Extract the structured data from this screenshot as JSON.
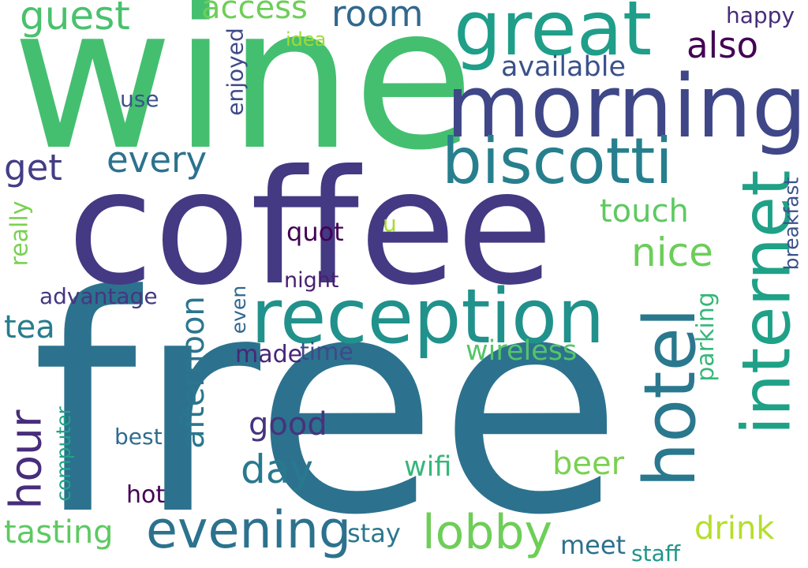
{
  "words": [
    {
      "text": "wine",
      "color": "#44bf70"
    },
    {
      "text": "free",
      "color": "#2c728e"
    },
    {
      "text": "coffee",
      "color": "#443983"
    },
    {
      "text": "morning",
      "color": "#3f4788"
    },
    {
      "text": "great",
      "color": "#1f9e89"
    },
    {
      "text": "reception",
      "color": "#21918c"
    },
    {
      "text": "biscotti",
      "color": "#277f8e"
    },
    {
      "text": "hotel",
      "color": "#2a788e"
    },
    {
      "text": "internet",
      "color": "#1fa187"
    },
    {
      "text": "evening",
      "color": "#2c728e"
    },
    {
      "text": "lobby",
      "color": "#6ece58"
    },
    {
      "text": "afternoon",
      "color": "#2a768e"
    },
    {
      "text": "hour",
      "color": "#472d7b"
    },
    {
      "text": "guest",
      "color": "#4ac16d"
    },
    {
      "text": "room",
      "color": "#31688e"
    },
    {
      "text": "access",
      "color": "#6ece58"
    },
    {
      "text": "also",
      "color": "#440154"
    },
    {
      "text": "available",
      "color": "#3b518b"
    },
    {
      "text": "every",
      "color": "#2c728e"
    },
    {
      "text": "get",
      "color": "#433e85"
    },
    {
      "text": "nice",
      "color": "#6ccd5a"
    },
    {
      "text": "touch",
      "color": "#5ec962"
    },
    {
      "text": "day",
      "color": "#29798e"
    },
    {
      "text": "good",
      "color": "#46337e"
    },
    {
      "text": "tasting",
      "color": "#5ec962"
    },
    {
      "text": "drink",
      "color": "#b5de2b"
    },
    {
      "text": "beer",
      "color": "#7ad151"
    },
    {
      "text": "wireless",
      "color": "#54c568"
    },
    {
      "text": "parking",
      "color": "#35b779"
    },
    {
      "text": "breakfast",
      "color": "#3b528b"
    },
    {
      "text": "tea",
      "color": "#287c8e"
    },
    {
      "text": "advantage",
      "color": "#453781"
    },
    {
      "text": "really",
      "color": "#7ad151"
    },
    {
      "text": "enjoyed",
      "color": "#3e4a89"
    },
    {
      "text": "use",
      "color": "#3b528b"
    },
    {
      "text": "idea",
      "color": "#a0da39"
    },
    {
      "text": "happy",
      "color": "#472c7a"
    },
    {
      "text": "quot",
      "color": "#440154"
    },
    {
      "text": "u",
      "color": "#a5db36"
    },
    {
      "text": "night",
      "color": "#481f70"
    },
    {
      "text": "even",
      "color": "#31688e"
    },
    {
      "text": "made",
      "color": "#482677"
    },
    {
      "text": "time",
      "color": "#3e4a89"
    },
    {
      "text": "wifi",
      "color": "#35b779"
    },
    {
      "text": "best",
      "color": "#2f6c8e"
    },
    {
      "text": "hot",
      "color": "#440154"
    },
    {
      "text": "computer",
      "color": "#20a386"
    },
    {
      "text": "stay",
      "color": "#2a788e"
    },
    {
      "text": "meet",
      "color": "#2c718e"
    },
    {
      "text": "staff",
      "color": "#1f968b"
    }
  ]
}
